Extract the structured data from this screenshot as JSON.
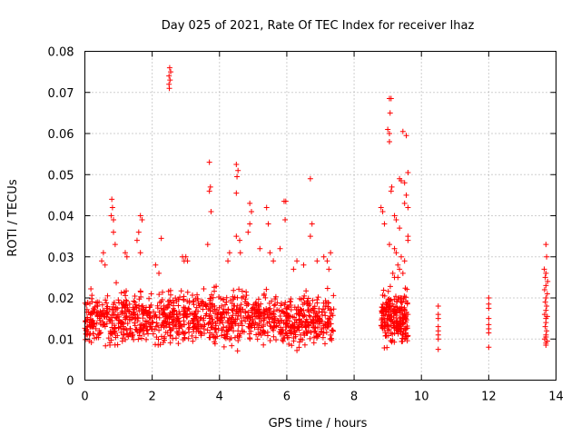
{
  "chart_data": {
    "type": "scatter",
    "title": "Day 025 of 2021, Rate Of TEC Index for receiver lhaz",
    "xlabel": "GPS time / hours",
    "ylabel": "ROTI / TECUs",
    "xlim": [
      0,
      14
    ],
    "ylim": [
      0,
      0.08
    ],
    "xticks": [
      0,
      2,
      4,
      6,
      8,
      10,
      12,
      14
    ],
    "xtick_labels": [
      "0",
      "2",
      "4",
      "6",
      "8",
      "10",
      "12",
      "14"
    ],
    "yticks": [
      0,
      0.01,
      0.02,
      0.03,
      0.04,
      0.05,
      0.06,
      0.07,
      0.08
    ],
    "ytick_labels": [
      "0",
      "0.01",
      "0.02",
      "0.03",
      "0.04",
      "0.05",
      "0.06",
      "0.07",
      "0.08"
    ],
    "grid": true,
    "marker": "+",
    "color": "#ff0000",
    "dense_segments": [
      {
        "x": [
          0.0,
          7.4
        ],
        "y": [
          0.006,
          0.024
        ],
        "density": 1200
      },
      {
        "x": [
          8.8,
          9.6
        ],
        "y": [
          0.006,
          0.024
        ],
        "density": 220
      }
    ],
    "series": [
      {
        "name": "ROTI",
        "points": [
          [
            2.52,
            0.076
          ],
          [
            2.55,
            0.075
          ],
          [
            2.5,
            0.074
          ],
          [
            2.53,
            0.073
          ],
          [
            2.5,
            0.072
          ],
          [
            2.51,
            0.071
          ],
          [
            3.7,
            0.053
          ],
          [
            3.73,
            0.047
          ],
          [
            3.7,
            0.046
          ],
          [
            3.75,
            0.041
          ],
          [
            3.65,
            0.033
          ],
          [
            4.5,
            0.0525
          ],
          [
            4.55,
            0.051
          ],
          [
            4.52,
            0.0495
          ],
          [
            4.5,
            0.0455
          ],
          [
            4.5,
            0.035
          ],
          [
            6.7,
            0.049
          ],
          [
            5.92,
            0.0435
          ],
          [
            5.97,
            0.0435
          ],
          [
            5.95,
            0.039
          ],
          [
            4.9,
            0.043
          ],
          [
            4.95,
            0.041
          ],
          [
            5.4,
            0.042
          ],
          [
            5.45,
            0.038
          ],
          [
            6.75,
            0.038
          ],
          [
            6.7,
            0.035
          ],
          [
            4.9,
            0.038
          ],
          [
            4.85,
            0.036
          ],
          [
            0.8,
            0.044
          ],
          [
            0.82,
            0.042
          ],
          [
            0.78,
            0.04
          ],
          [
            0.85,
            0.039
          ],
          [
            0.85,
            0.036
          ],
          [
            0.9,
            0.033
          ],
          [
            1.65,
            0.04
          ],
          [
            1.7,
            0.039
          ],
          [
            1.6,
            0.036
          ],
          [
            1.55,
            0.034
          ],
          [
            1.65,
            0.031
          ],
          [
            2.27,
            0.0345
          ],
          [
            2.9,
            0.03
          ],
          [
            2.95,
            0.029
          ],
          [
            3.05,
            0.029
          ],
          [
            3.0,
            0.03
          ],
          [
            0.5,
            0.029
          ],
          [
            0.55,
            0.031
          ],
          [
            0.6,
            0.028
          ],
          [
            1.2,
            0.031
          ],
          [
            1.25,
            0.03
          ],
          [
            2.1,
            0.028
          ],
          [
            2.2,
            0.026
          ],
          [
            4.3,
            0.031
          ],
          [
            4.25,
            0.029
          ],
          [
            4.6,
            0.034
          ],
          [
            4.62,
            0.031
          ],
          [
            5.2,
            0.032
          ],
          [
            5.5,
            0.031
          ],
          [
            5.6,
            0.029
          ],
          [
            5.8,
            0.032
          ],
          [
            6.2,
            0.027
          ],
          [
            6.3,
            0.029
          ],
          [
            6.5,
            0.028
          ],
          [
            6.9,
            0.029
          ],
          [
            7.1,
            0.03
          ],
          [
            7.2,
            0.029
          ],
          [
            7.3,
            0.031
          ],
          [
            7.25,
            0.027
          ],
          [
            9.05,
            0.0685
          ],
          [
            9.1,
            0.0685
          ],
          [
            9.07,
            0.065
          ],
          [
            9.0,
            0.061
          ],
          [
            9.05,
            0.06
          ],
          [
            9.05,
            0.058
          ],
          [
            9.45,
            0.0605
          ],
          [
            9.55,
            0.0595
          ],
          [
            9.6,
            0.0505
          ],
          [
            9.35,
            0.049
          ],
          [
            9.4,
            0.0485
          ],
          [
            9.5,
            0.048
          ],
          [
            9.1,
            0.046
          ],
          [
            9.12,
            0.047
          ],
          [
            9.55,
            0.045
          ],
          [
            9.5,
            0.043
          ],
          [
            9.6,
            0.042
          ],
          [
            8.8,
            0.042
          ],
          [
            8.85,
            0.041
          ],
          [
            9.2,
            0.04
          ],
          [
            9.25,
            0.039
          ],
          [
            8.9,
            0.038
          ],
          [
            9.35,
            0.037
          ],
          [
            9.6,
            0.035
          ],
          [
            9.6,
            0.034
          ],
          [
            9.05,
            0.033
          ],
          [
            9.2,
            0.032
          ],
          [
            9.25,
            0.031
          ],
          [
            9.4,
            0.03
          ],
          [
            9.5,
            0.029
          ],
          [
            9.3,
            0.028
          ],
          [
            9.35,
            0.027
          ],
          [
            9.45,
            0.026
          ],
          [
            9.15,
            0.026
          ],
          [
            9.3,
            0.025
          ],
          [
            9.2,
            0.025
          ],
          [
            10.5,
            0.018
          ],
          [
            10.5,
            0.016
          ],
          [
            10.5,
            0.015
          ],
          [
            10.5,
            0.013
          ],
          [
            10.5,
            0.012
          ],
          [
            10.5,
            0.011
          ],
          [
            10.5,
            0.01
          ],
          [
            10.5,
            0.0075
          ],
          [
            12.0,
            0.02
          ],
          [
            12.0,
            0.0185
          ],
          [
            12.0,
            0.0175
          ],
          [
            12.0,
            0.015
          ],
          [
            12.0,
            0.0135
          ],
          [
            12.0,
            0.0125
          ],
          [
            12.0,
            0.0115
          ],
          [
            12.0,
            0.008
          ],
          [
            13.7,
            0.033
          ],
          [
            13.72,
            0.03
          ],
          [
            13.65,
            0.027
          ],
          [
            13.7,
            0.026
          ],
          [
            13.68,
            0.025
          ],
          [
            13.75,
            0.024
          ],
          [
            13.7,
            0.023
          ],
          [
            13.66,
            0.022
          ],
          [
            13.74,
            0.021
          ],
          [
            13.7,
            0.02
          ],
          [
            13.68,
            0.019
          ],
          [
            13.72,
            0.018
          ],
          [
            13.7,
            0.017
          ],
          [
            13.66,
            0.016
          ],
          [
            13.74,
            0.0155
          ],
          [
            13.7,
            0.015
          ],
          [
            13.7,
            0.014
          ],
          [
            13.68,
            0.013
          ],
          [
            13.72,
            0.012
          ],
          [
            13.7,
            0.011
          ],
          [
            13.7,
            0.0105
          ],
          [
            13.66,
            0.01
          ],
          [
            13.74,
            0.0095
          ],
          [
            13.7,
            0.009
          ],
          [
            13.7,
            0.0085
          ]
        ]
      }
    ]
  }
}
